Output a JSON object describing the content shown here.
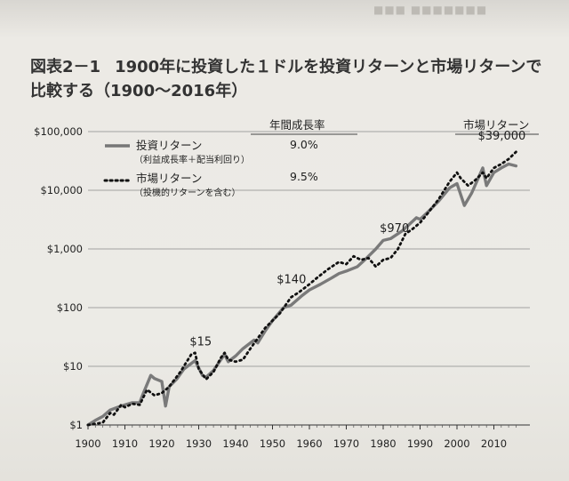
{
  "header_ghost": "■■■  ■■■■■■■",
  "figure": {
    "label": "図表2－1",
    "title": "1900年に投資した１ドルを投資リターンと市場リターンで比較する（1900〜2016年）"
  },
  "chart_data": {
    "type": "line",
    "y_scale": "log",
    "ylim": [
      1,
      100000
    ],
    "xlim": [
      1900,
      2017
    ],
    "x_ticks": [
      1900,
      1910,
      1920,
      1930,
      1940,
      1950,
      1960,
      1970,
      1980,
      1990,
      2000,
      2010
    ],
    "y_ticks": [
      {
        "value": 1,
        "label": "$1"
      },
      {
        "value": 10,
        "label": "$10"
      },
      {
        "value": 100,
        "label": "$100"
      },
      {
        "value": 1000,
        "label": "$1,000"
      },
      {
        "value": 10000,
        "label": "$10,000"
      },
      {
        "value": 100000,
        "label": "$100,000"
      }
    ],
    "grid": "horizontal",
    "legend": [
      {
        "label": "投資リターン",
        "sub": "（利益成長率＋配当利回り）",
        "annual": "9.0%",
        "style": "solid"
      },
      {
        "label": "市場リターン",
        "sub": "（投機的リターンを含む）",
        "annual": "9.5%",
        "style": "dotted"
      }
    ],
    "column_headers": {
      "annual_growth": "年間成長率",
      "market_return": "市場リターン"
    },
    "annotations": [
      {
        "text": "$15",
        "x": 1929,
        "y": 15
      },
      {
        "text": "$140",
        "x": 1955,
        "y": 140
      },
      {
        "text": "$970",
        "x": 1981,
        "y": 970
      },
      {
        "text": "$39,000",
        "x": 2010,
        "y": 39000
      }
    ],
    "series": [
      {
        "name": "投資リターン",
        "style": "solid",
        "x": [
          1900,
          1902,
          1904,
          1906,
          1908,
          1910,
          1912,
          1914,
          1915,
          1917,
          1918,
          1920,
          1921,
          1922,
          1924,
          1926,
          1929,
          1931,
          1932,
          1934,
          1937,
          1938,
          1940,
          1942,
          1945,
          1946,
          1948,
          1950,
          1953,
          1955,
          1958,
          1960,
          1963,
          1966,
          1968,
          1970,
          1973,
          1975,
          1978,
          1980,
          1982,
          1985,
          1987,
          1989,
          1990,
          1992,
          1995,
          1998,
          2000,
          2002,
          2004,
          2007,
          2008,
          2010,
          2012,
          2014,
          2016
        ],
        "y": [
          1,
          1.2,
          1.4,
          1.8,
          2,
          2.2,
          2.4,
          2.4,
          3.5,
          7,
          6.2,
          5.5,
          2.1,
          4.5,
          6,
          9,
          12.5,
          7,
          6.5,
          8.5,
          16,
          12,
          15,
          20,
          28,
          25,
          40,
          60,
          100,
          110,
          160,
          200,
          250,
          320,
          380,
          420,
          500,
          650,
          1000,
          1400,
          1500,
          2000,
          2600,
          3400,
          3200,
          4200,
          6500,
          11000,
          13000,
          5500,
          9000,
          24000,
          12000,
          20000,
          24000,
          28000,
          26000
        ]
      },
      {
        "name": "市場リターン",
        "style": "dotted",
        "x": [
          1900,
          1902,
          1904,
          1906,
          1907,
          1909,
          1910,
          1912,
          1914,
          1916,
          1918,
          1920,
          1922,
          1925,
          1928,
          1929,
          1930,
          1932,
          1934,
          1936,
          1937,
          1938,
          1940,
          1942,
          1944,
          1946,
          1948,
          1950,
          1952,
          1955,
          1957,
          1960,
          1962,
          1965,
          1968,
          1970,
          1972,
          1974,
          1976,
          1978,
          1980,
          1982,
          1984,
          1986,
          1988,
          1990,
          1992,
          1995,
          1998,
          2000,
          2001,
          2003,
          2005,
          2007,
          2008,
          2010,
          2012,
          2014,
          2016
        ],
        "y": [
          1,
          1.05,
          1.1,
          1.6,
          1.5,
          2.2,
          2,
          2.3,
          2.2,
          4,
          3.2,
          3.5,
          4.5,
          8,
          16,
          17,
          9,
          6,
          8,
          14,
          17,
          13,
          12,
          13,
          20,
          30,
          45,
          60,
          80,
          150,
          180,
          250,
          320,
          450,
          600,
          550,
          750,
          650,
          700,
          500,
          650,
          700,
          1000,
          1800,
          2200,
          2800,
          4000,
          7000,
          14000,
          20000,
          16000,
          12000,
          15000,
          20000,
          16000,
          24000,
          28000,
          34000,
          45000
        ]
      }
    ]
  }
}
